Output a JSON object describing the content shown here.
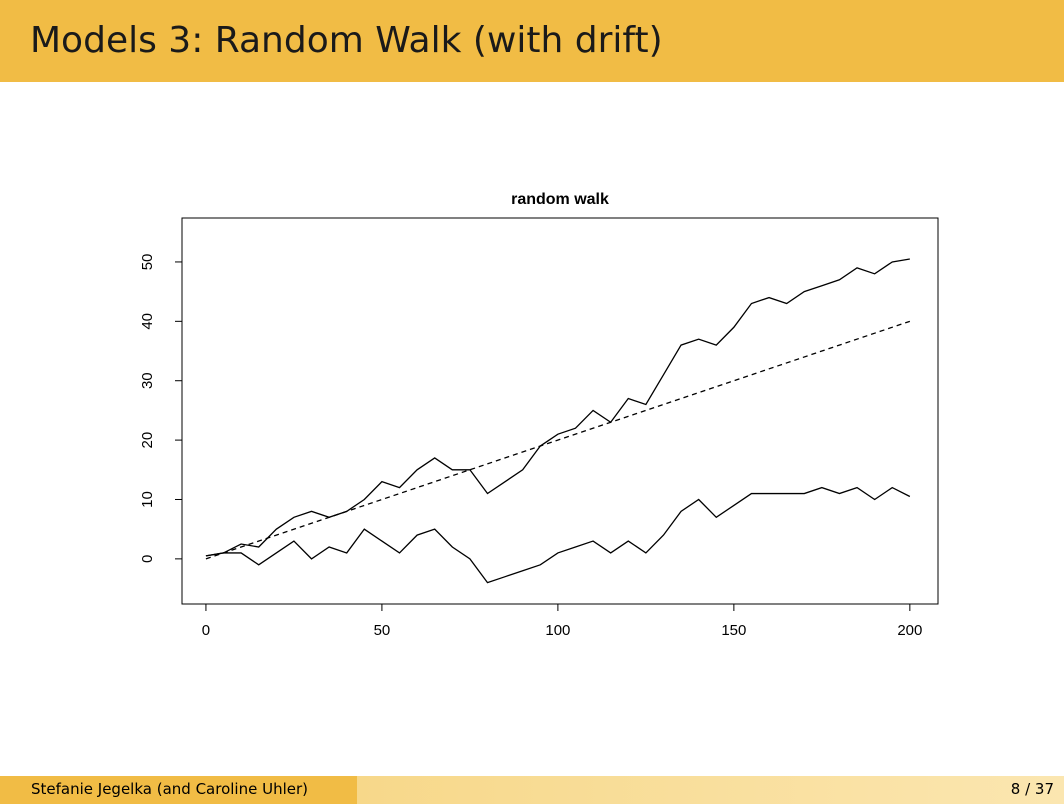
{
  "header": {
    "title": "Models 3: Random Walk (with drift)"
  },
  "footer": {
    "author": "Stefanie Jegelka  (and Caroline Uhler)",
    "page": "8 / 37"
  },
  "chart_data": {
    "type": "line",
    "title": "random walk",
    "xlim": [
      -6.8,
      208
    ],
    "ylim": [
      -7.6,
      57.4
    ],
    "xticks": [
      0,
      50,
      100,
      150,
      200
    ],
    "yticks": [
      0,
      10,
      20,
      30,
      40,
      50
    ],
    "series": [
      {
        "color": "#000000",
        "dashed": false,
        "x": [
          0,
          5,
          10,
          15,
          20,
          25,
          30,
          35,
          40,
          45,
          50,
          55,
          60,
          65,
          70,
          75,
          80,
          85,
          90,
          95,
          100,
          105,
          110,
          115,
          120,
          125,
          130,
          135,
          140,
          145,
          150,
          155,
          160,
          165,
          170,
          175,
          180,
          185,
          190,
          195,
          200
        ],
        "values": [
          0.5,
          1,
          2.5,
          2,
          5,
          7,
          8,
          7,
          8,
          10,
          13,
          12,
          15,
          17,
          15,
          15,
          11,
          13,
          15,
          19,
          21,
          22,
          25,
          23,
          27,
          26,
          31,
          36,
          37,
          36,
          39,
          43,
          44,
          43,
          45,
          46,
          47,
          49,
          48,
          50,
          50.5
        ]
      },
      {
        "color": "#000000",
        "dashed": false,
        "x": [
          0,
          5,
          10,
          15,
          20,
          25,
          30,
          35,
          40,
          45,
          50,
          55,
          60,
          65,
          70,
          75,
          80,
          85,
          90,
          95,
          100,
          105,
          110,
          115,
          120,
          125,
          130,
          135,
          140,
          145,
          150,
          155,
          160,
          165,
          170,
          175,
          180,
          185,
          190,
          195,
          200
        ],
        "values": [
          0.5,
          1,
          1,
          -1,
          1,
          3,
          0,
          2,
          1,
          5,
          3,
          1,
          4,
          5,
          2,
          0,
          -4,
          -3,
          -2,
          -1,
          1,
          2,
          3,
          1,
          3,
          1,
          4,
          8,
          10,
          7,
          9,
          11,
          11,
          11,
          11,
          12,
          11,
          12,
          10,
          12,
          10.5
        ]
      },
      {
        "color": "#000000",
        "dashed": true,
        "x": [
          0,
          200
        ],
        "values": [
          0,
          40
        ]
      }
    ]
  }
}
